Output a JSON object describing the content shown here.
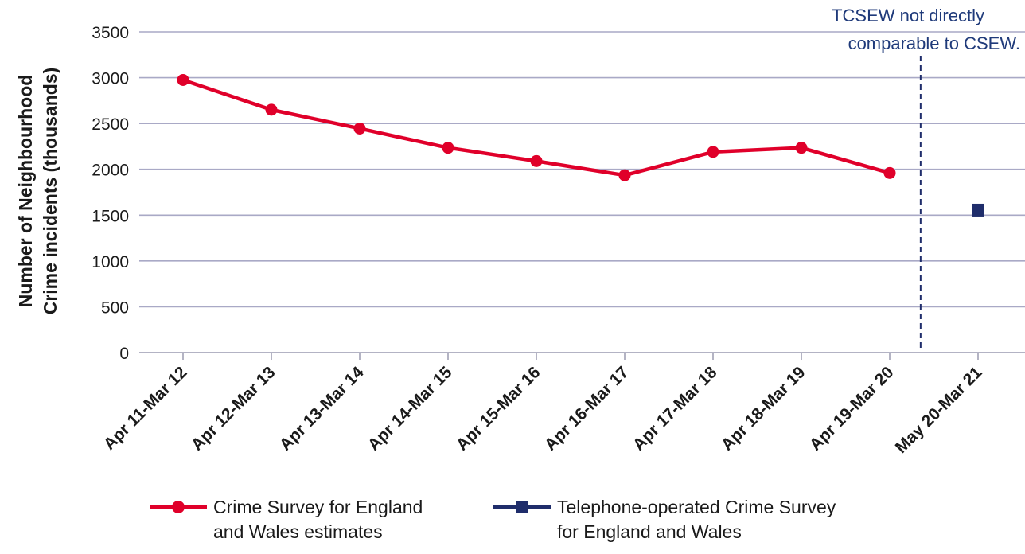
{
  "chart_data": {
    "type": "line",
    "categories": [
      "Apr 11-Mar 12",
      "Apr 12-Mar 13",
      "Apr 13-Mar 14",
      "Apr 14-Mar 15",
      "Apr 15-Mar 16",
      "Apr 16-Mar 17",
      "Apr 17-Mar 18",
      "Apr 18-Mar 19",
      "Apr 19-Mar 20",
      "May 20-Mar 21"
    ],
    "series": [
      {
        "name": "Crime Survey for England and Wales estimates",
        "color": "#e0002a",
        "marker": "circle",
        "values": [
          2975,
          2650,
          2445,
          2235,
          2090,
          1935,
          2190,
          2235,
          1960,
          null
        ]
      },
      {
        "name": "Telephone-operated Crime Survey for England and Wales",
        "color": "#1f2d6b",
        "marker": "square",
        "values": [
          null,
          null,
          null,
          null,
          null,
          null,
          null,
          null,
          null,
          1555
        ]
      }
    ],
    "ylabel": [
      "Number of Neighbourhood",
      "Crime incidents  (thousands)"
    ],
    "xlabel": "",
    "ylim": [
      0,
      3500
    ],
    "yticks": [
      0,
      500,
      1000,
      1500,
      2000,
      2500,
      3000,
      3500
    ],
    "grid": true,
    "annotation": [
      "TCSEW not directly",
      "comparable to CSEW."
    ],
    "legend_position": "bottom",
    "legend": [
      {
        "label": "Crime Survey for England\nand Wales estimates",
        "color": "#e0002a",
        "marker": "circle"
      },
      {
        "label": "Telephone-operated Crime Survey\nfor England and Wales",
        "color": "#1f2d6b",
        "marker": "square"
      }
    ]
  }
}
